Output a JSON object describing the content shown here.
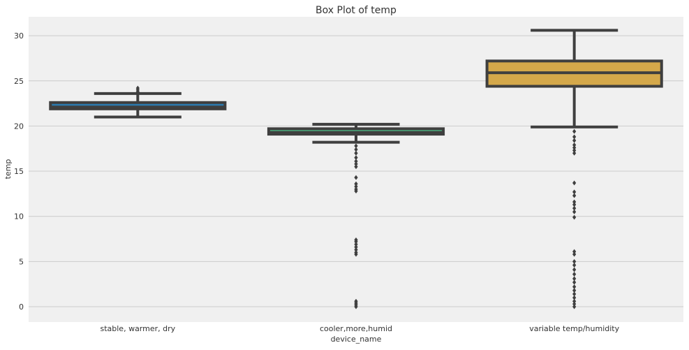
{
  "chart_data": {
    "type": "box",
    "title": "Box Plot of temp",
    "xlabel": "device_name",
    "ylabel": "temp",
    "ylim": [
      -1.6,
      32.3
    ],
    "yticks": [
      0,
      5,
      10,
      15,
      20,
      25,
      30
    ],
    "grid": "horizontal",
    "legend": "none",
    "colors": {
      "plot_background": "#f0f0f0",
      "grid": "#cbcbcb",
      "box_stroke": "#3f3f3f",
      "text": "#333333"
    },
    "categories": [
      {
        "name": "stable, warmer, dry",
        "color": "#2a7ab0",
        "min": 21.0,
        "q1": 21.9,
        "median": 22.1,
        "q3": 22.6,
        "max": 23.6,
        "outliers": [
          23.8,
          24.0,
          24.2
        ]
      },
      {
        "name": "cooler,more,humid",
        "color": "#4dc38a",
        "min": 18.2,
        "q1": 19.1,
        "median": 19.3,
        "q3": 19.7,
        "max": 20.2,
        "outliers": [
          0.0,
          0.2,
          0.4,
          0.6,
          5.8,
          6.0,
          6.3,
          6.6,
          6.9,
          7.2,
          7.4,
          12.8,
          13.0,
          13.3,
          13.6,
          14.3,
          15.5,
          15.8,
          16.1,
          16.5,
          17.0,
          17.4,
          17.8
        ]
      },
      {
        "name": "variable temp/humidity",
        "color": "#d4a84a",
        "min": 19.9,
        "q1": 24.4,
        "median": 25.9,
        "q3": 27.2,
        "max": 30.6,
        "outliers": [
          0.0,
          0.3,
          0.6,
          1.0,
          1.4,
          1.8,
          2.2,
          2.7,
          3.1,
          3.6,
          4.1,
          4.6,
          5.0,
          5.8,
          6.1,
          9.9,
          10.5,
          10.9,
          11.3,
          11.6,
          12.3,
          12.7,
          13.7,
          17.0,
          17.3,
          17.6,
          17.9,
          18.4,
          18.8,
          19.4
        ]
      }
    ]
  }
}
